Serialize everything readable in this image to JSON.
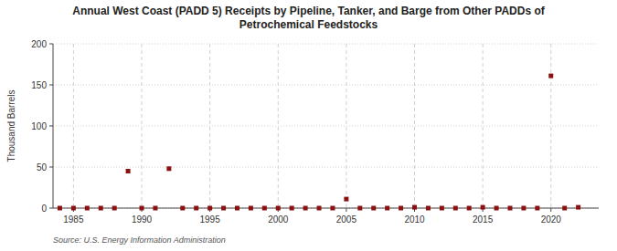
{
  "chart_data": {
    "type": "scatter",
    "title": "Annual West Coast (PADD 5) Receipts by Pipeline, Tanker, and Barge from Other PADDs of\nPetrochemical Feedstocks",
    "ylabel": "Thousand Barrels",
    "source": "Source: U.S. Energy Information Administration",
    "x": [
      1984,
      1985,
      1986,
      1987,
      1988,
      1989,
      1990,
      1991,
      1992,
      1993,
      1994,
      1995,
      1996,
      1997,
      1998,
      1999,
      2000,
      2001,
      2002,
      2003,
      2004,
      2005,
      2006,
      2007,
      2008,
      2009,
      2010,
      2011,
      2012,
      2013,
      2014,
      2015,
      2016,
      2017,
      2018,
      2019,
      2020,
      2021,
      2022
    ],
    "values": [
      0,
      0,
      0,
      0,
      0,
      45,
      0,
      0,
      48,
      0,
      0,
      0,
      0,
      0,
      0,
      0,
      0,
      0,
      0,
      0,
      0,
      11,
      0,
      0,
      0,
      0,
      1,
      0,
      0,
      0,
      0,
      1,
      0,
      0,
      0,
      0,
      161,
      0,
      1
    ],
    "color": "#8b1010",
    "marker": "square",
    "xlim": [
      1983.5,
      2023.5
    ],
    "xticks": [
      1985,
      1990,
      1995,
      2000,
      2005,
      2010,
      2015,
      2020
    ],
    "ylim": [
      0,
      200
    ],
    "yticks": [
      0,
      50,
      100,
      150,
      200
    ],
    "grid": true
  }
}
